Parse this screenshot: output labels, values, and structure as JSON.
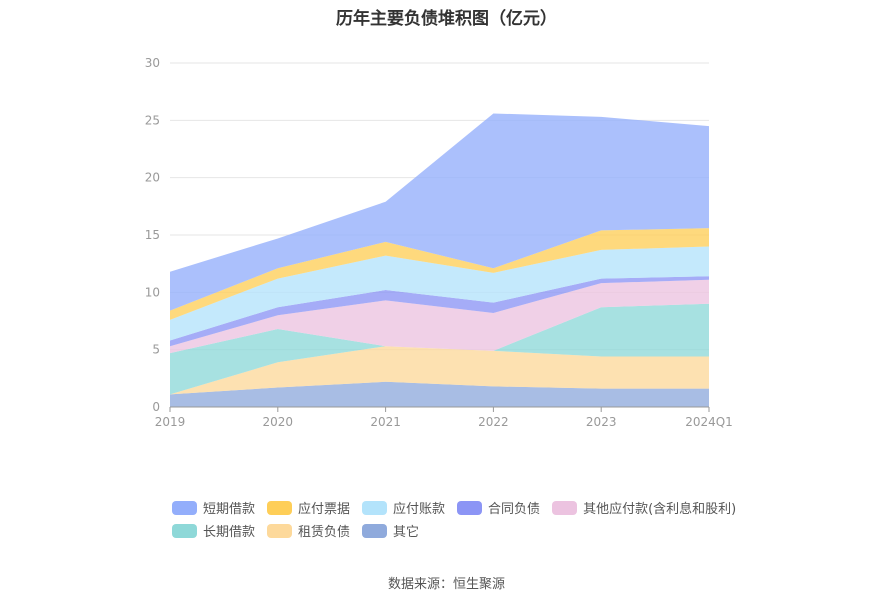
{
  "chart_data": {
    "type": "area",
    "title": "历年主要负债堆积图（亿元）",
    "stacked": true,
    "categories": [
      "2019",
      "2020",
      "2021",
      "2022",
      "2023",
      "2024Q1"
    ],
    "ylim": [
      0,
      30
    ],
    "yticks": [
      "0",
      "5",
      "10",
      "15",
      "20",
      "25",
      "30"
    ],
    "grid": true,
    "legend_position": "bottom",
    "series": [
      {
        "name": "其它",
        "color": "#8faadc",
        "values": [
          1.1,
          1.7,
          2.2,
          1.8,
          1.6,
          1.6
        ]
      },
      {
        "name": "租赁负债",
        "color": "#fdd99b",
        "values": [
          0.0,
          2.2,
          3.1,
          3.1,
          2.8,
          2.8
        ]
      },
      {
        "name": "长期借款",
        "color": "#8ed8d8",
        "values": [
          3.6,
          2.9,
          0.0,
          0.0,
          4.3,
          4.6
        ]
      },
      {
        "name": "其他应付款(含利息和股利)",
        "color": "#ecc3e0",
        "values": [
          0.6,
          1.2,
          4.0,
          3.3,
          2.1,
          2.1
        ]
      },
      {
        "name": "合同负债",
        "color": "#8c95f5",
        "values": [
          0.5,
          0.7,
          0.9,
          0.9,
          0.4,
          0.3
        ]
      },
      {
        "name": "应付账款",
        "color": "#b3e3fb",
        "values": [
          1.8,
          2.5,
          3.0,
          2.6,
          2.5,
          2.6
        ]
      },
      {
        "name": "应付票据",
        "color": "#fece58",
        "values": [
          0.8,
          0.9,
          1.2,
          0.4,
          1.7,
          1.6
        ]
      },
      {
        "name": "短期借款",
        "color": "#93aefb",
        "values": [
          3.4,
          2.6,
          3.5,
          13.5,
          9.9,
          8.9
        ]
      }
    ],
    "legend_rows": [
      [
        "短期借款",
        "应付票据",
        "应付账款",
        "合同负债",
        "其他应付款(含利息和股利)"
      ],
      [
        "长期借款",
        "租赁负债",
        "其它"
      ]
    ]
  },
  "source_text": "数据来源：恒生聚源"
}
